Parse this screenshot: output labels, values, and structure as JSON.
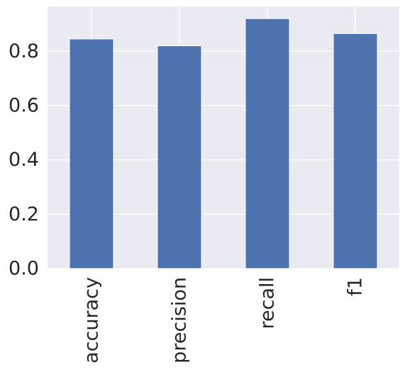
{
  "chart_data": {
    "type": "bar",
    "categories": [
      "accuracy",
      "precision",
      "recall",
      "f1"
    ],
    "values": [
      0.845,
      0.82,
      0.92,
      0.865
    ],
    "title": "",
    "xlabel": "",
    "ylabel": "",
    "ylim": [
      0,
      0.965
    ],
    "yticks": [
      "0.0",
      "0.2",
      "0.4",
      "0.6",
      "0.8"
    ],
    "grid": true,
    "legend": "none",
    "colors": {
      "bar": "#4c72b0",
      "plot_background": "#eaeaf2",
      "grid": "#ffffff",
      "text": "#262626"
    }
  }
}
